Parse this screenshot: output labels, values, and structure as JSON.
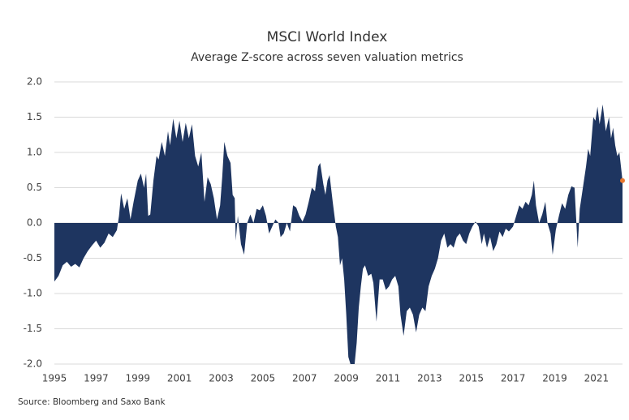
{
  "chart_data": {
    "type": "area",
    "title": "MSCI World Index",
    "subtitle": "Average Z-score across seven valuation metrics",
    "source": "Source: Bloomberg and Saxo Bank",
    "color": "#1e3560",
    "highlight_color": "#e8772e",
    "grid": true,
    "xlim": [
      1995,
      2022.25
    ],
    "xticks": [
      1995,
      1997,
      1999,
      2001,
      2003,
      2005,
      2007,
      2009,
      2011,
      2013,
      2015,
      2017,
      2019,
      2021
    ],
    "ylim": [
      -2.0,
      2.0
    ],
    "yticks": [
      {
        "value": 2.0,
        "label": "2.0"
      },
      {
        "value": 1.5,
        "label": "1.5"
      },
      {
        "value": 1.0,
        "label": "1.0"
      },
      {
        "value": 0.5,
        "label": "0.5"
      },
      {
        "value": 0.0,
        "label": "0.0"
      },
      {
        "value": -0.5,
        "label": "-0.5"
      },
      {
        "value": -1.0,
        "label": "-1.0"
      },
      {
        "value": -1.5,
        "label": "-1.5"
      },
      {
        "value": -2.0,
        "label": "-2.0"
      }
    ],
    "x": [
      1995.0,
      1995.2,
      1995.4,
      1995.6,
      1995.8,
      1996.0,
      1996.2,
      1996.4,
      1996.6,
      1996.8,
      1997.0,
      1997.2,
      1997.4,
      1997.6,
      1997.8,
      1998.0,
      1998.1,
      1998.2,
      1998.35,
      1998.5,
      1998.65,
      1998.8,
      1999.0,
      1999.15,
      1999.3,
      1999.4,
      1999.5,
      1999.6,
      1999.75,
      1999.9,
      2000.0,
      2000.15,
      2000.3,
      2000.45,
      2000.55,
      2000.7,
      2000.85,
      2001.0,
      2001.15,
      2001.3,
      2001.45,
      2001.6,
      2001.75,
      2001.9,
      2002.05,
      2002.2,
      2002.35,
      2002.5,
      2002.65,
      2002.8,
      2002.95,
      2003.05,
      2003.15,
      2003.3,
      2003.45,
      2003.55,
      2003.65,
      2003.7,
      2003.8,
      2003.95,
      2004.1,
      2004.25,
      2004.4,
      2004.55,
      2004.7,
      2004.85,
      2005.0,
      2005.15,
      2005.3,
      2005.45,
      2005.6,
      2005.75,
      2005.85,
      2006.0,
      2006.15,
      2006.3,
      2006.45,
      2006.6,
      2006.75,
      2006.9,
      2007.05,
      2007.2,
      2007.35,
      2007.5,
      2007.65,
      2007.75,
      2007.9,
      2008.0,
      2008.1,
      2008.2,
      2008.35,
      2008.5,
      2008.6,
      2008.7,
      2008.8,
      2008.9,
      2009.0,
      2009.1,
      2009.2,
      2009.4,
      2009.5,
      2009.6,
      2009.7,
      2009.8,
      2009.9,
      2010.05,
      2010.2,
      2010.3,
      2010.45,
      2010.6,
      2010.75,
      2010.9,
      2011.05,
      2011.2,
      2011.35,
      2011.5,
      2011.6,
      2011.75,
      2011.9,
      2012.05,
      2012.2,
      2012.35,
      2012.5,
      2012.65,
      2012.8,
      2012.95,
      2013.1,
      2013.25,
      2013.4,
      2013.55,
      2013.7,
      2013.85,
      2014.0,
      2014.15,
      2014.3,
      2014.45,
      2014.6,
      2014.75,
      2014.9,
      2015.05,
      2015.2,
      2015.35,
      2015.5,
      2015.6,
      2015.75,
      2015.9,
      2016.05,
      2016.2,
      2016.35,
      2016.5,
      2016.65,
      2016.8,
      2017.0,
      2017.15,
      2017.3,
      2017.45,
      2017.6,
      2017.75,
      2017.9,
      2018.0,
      2018.1,
      2018.25,
      2018.4,
      2018.55,
      2018.65,
      2018.8,
      2018.9,
      2019.05,
      2019.2,
      2019.35,
      2019.5,
      2019.65,
      2019.8,
      2019.95,
      2020.1,
      2020.2,
      2020.35,
      2020.5,
      2020.6,
      2020.7,
      2020.85,
      2020.95,
      2021.05,
      2021.15,
      2021.3,
      2021.45,
      2021.6,
      2021.7,
      2021.8,
      2021.9,
      2022.0,
      2022.1,
      2022.25
    ],
    "values": [
      -0.83,
      -0.75,
      -0.6,
      -0.55,
      -0.62,
      -0.58,
      -0.63,
      -0.5,
      -0.4,
      -0.32,
      -0.25,
      -0.35,
      -0.28,
      -0.15,
      -0.2,
      -0.1,
      0.1,
      0.42,
      0.2,
      0.35,
      0.05,
      0.3,
      0.6,
      0.7,
      0.5,
      0.7,
      0.1,
      0.12,
      0.6,
      0.95,
      0.9,
      1.15,
      0.95,
      1.3,
      1.1,
      1.48,
      1.2,
      1.45,
      1.15,
      1.42,
      1.2,
      1.4,
      0.95,
      0.8,
      1.0,
      0.3,
      0.65,
      0.55,
      0.35,
      0.05,
      0.25,
      0.65,
      1.15,
      0.95,
      0.85,
      0.4,
      0.35,
      -0.25,
      0.1,
      -0.3,
      -0.45,
      0.0,
      0.12,
      0.0,
      0.2,
      0.18,
      0.25,
      0.1,
      -0.15,
      -0.05,
      0.05,
      0.0,
      -0.2,
      -0.15,
      0.0,
      -0.12,
      0.25,
      0.22,
      0.1,
      0.02,
      0.12,
      0.3,
      0.5,
      0.45,
      0.8,
      0.85,
      0.55,
      0.4,
      0.6,
      0.68,
      0.3,
      -0.05,
      -0.2,
      -0.6,
      -0.5,
      -0.8,
      -1.3,
      -1.9,
      -2.0,
      -2.0,
      -1.7,
      -1.2,
      -0.9,
      -0.65,
      -0.6,
      -0.75,
      -0.72,
      -0.85,
      -1.4,
      -0.8,
      -0.8,
      -0.95,
      -0.9,
      -0.8,
      -0.75,
      -0.9,
      -1.3,
      -1.6,
      -1.25,
      -1.2,
      -1.3,
      -1.55,
      -1.3,
      -1.2,
      -1.25,
      -0.9,
      -0.75,
      -0.65,
      -0.5,
      -0.25,
      -0.15,
      -0.35,
      -0.3,
      -0.35,
      -0.2,
      -0.15,
      -0.25,
      -0.3,
      -0.15,
      -0.05,
      0.02,
      -0.05,
      -0.3,
      -0.15,
      -0.35,
      -0.2,
      -0.4,
      -0.3,
      -0.12,
      -0.2,
      -0.08,
      -0.12,
      -0.05,
      0.1,
      0.25,
      0.2,
      0.3,
      0.25,
      0.4,
      0.6,
      0.25,
      0.0,
      0.12,
      0.3,
      0.0,
      -0.15,
      -0.45,
      -0.1,
      0.1,
      0.28,
      0.2,
      0.4,
      0.52,
      0.5,
      -0.35,
      0.2,
      0.5,
      0.8,
      1.05,
      0.95,
      1.5,
      1.45,
      1.65,
      1.4,
      1.68,
      1.3,
      1.5,
      1.2,
      1.35,
      1.1,
      0.95,
      1.0,
      0.6
    ]
  }
}
